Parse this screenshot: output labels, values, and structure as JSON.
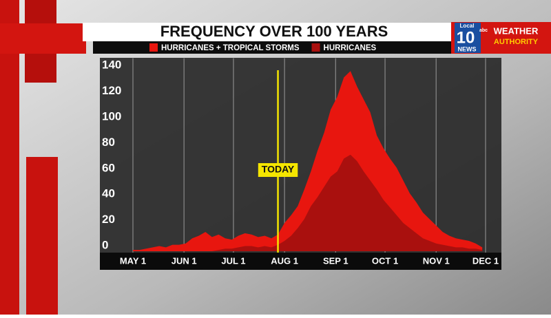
{
  "chart_data": {
    "type": "area",
    "title": "FREQUENCY OVER 100 YEARS",
    "x": [
      0,
      4,
      8,
      12,
      16,
      20,
      24,
      28,
      32,
      36,
      40,
      44,
      48,
      52,
      56,
      60,
      64,
      68,
      72,
      76,
      80,
      84,
      88,
      92,
      96,
      100,
      104,
      108,
      112,
      116,
      120,
      124,
      128,
      132,
      136,
      140,
      144,
      148,
      152,
      156,
      160,
      164,
      168,
      172,
      176,
      180,
      184,
      188,
      192,
      196,
      200,
      204,
      208,
      212
    ],
    "series": [
      {
        "name": "HURRICANES + TROPICAL STORMS",
        "color": "#e8160f",
        "values": [
          1,
          1,
          2,
          3,
          4,
          3,
          5,
          5,
          6,
          10,
          12,
          15,
          11,
          13,
          10,
          9,
          12,
          14,
          13,
          11,
          12,
          10,
          13,
          22,
          28,
          35,
          48,
          62,
          78,
          92,
          110,
          120,
          135,
          140,
          128,
          118,
          108,
          90,
          80,
          72,
          65,
          55,
          45,
          38,
          30,
          25,
          20,
          15,
          12,
          10,
          9,
          8,
          6,
          3
        ]
      },
      {
        "name": "HURRICANES",
        "color": "#a9100e",
        "values": [
          0,
          0,
          0,
          0,
          0,
          0,
          0,
          0,
          0,
          0,
          0,
          0,
          0,
          1,
          2,
          2,
          3,
          4,
          4,
          3,
          4,
          3,
          5,
          8,
          12,
          18,
          25,
          35,
          42,
          50,
          58,
          62,
          72,
          75,
          70,
          62,
          55,
          48,
          40,
          34,
          28,
          22,
          18,
          14,
          10,
          8,
          6,
          5,
          4,
          3,
          3,
          2,
          2,
          1
        ]
      }
    ],
    "xlim": [
      0,
      214
    ],
    "xticks": [
      {
        "value": 0,
        "label": "MAY 1"
      },
      {
        "value": 31,
        "label": "JUN 1"
      },
      {
        "value": 61,
        "label": "JUL 1"
      },
      {
        "value": 92,
        "label": "AUG 1"
      },
      {
        "value": 123,
        "label": "SEP 1"
      },
      {
        "value": 153,
        "label": "OCT 1"
      },
      {
        "value": 184,
        "label": "NOV 1"
      },
      {
        "value": 214,
        "label": "DEC 1"
      }
    ],
    "ylim": [
      0,
      150
    ],
    "yticks": [
      0,
      20,
      40,
      60,
      80,
      100,
      120,
      140
    ],
    "grid": "x",
    "annotation": {
      "text": "TODAY",
      "x": 88,
      "color": "#f5e600"
    }
  },
  "logo": {
    "local": "Local",
    "number": "10",
    "news": "NEWS",
    "network": "abc",
    "weather": "WEATHER",
    "authority": "AUTHORITY"
  }
}
